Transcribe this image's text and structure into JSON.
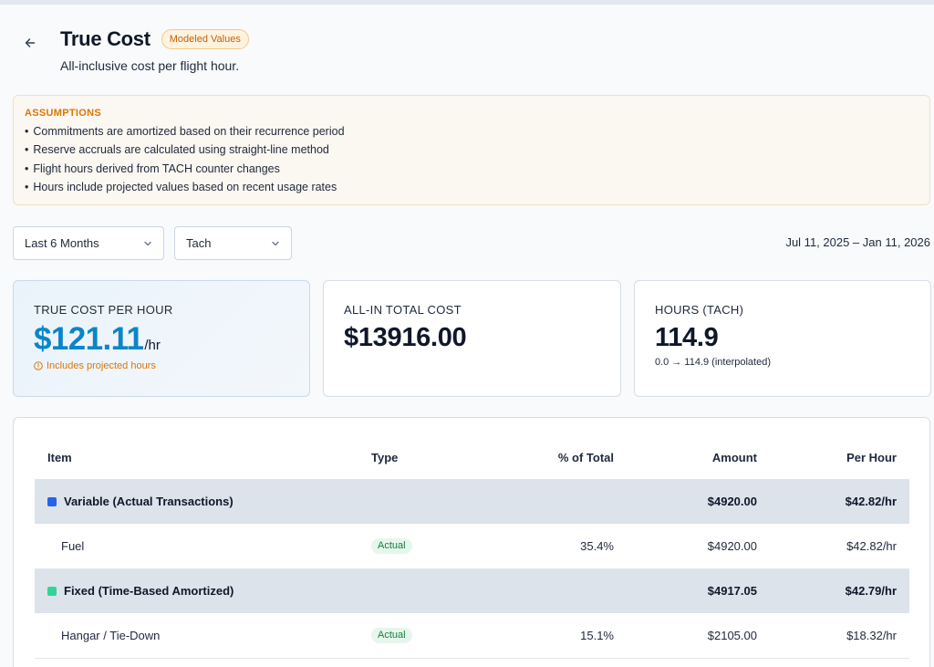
{
  "header": {
    "title": "True Cost",
    "badge": "Modeled Values",
    "subtitle": "All-inclusive cost per flight hour."
  },
  "assumptions": {
    "heading": "ASSUMPTIONS",
    "items": [
      "Commitments are amortized based on their recurrence period",
      "Reserve accruals are calculated using straight-line method",
      "Flight hours derived from TACH counter changes",
      "Hours include projected values based on recent usage rates"
    ]
  },
  "filters": {
    "period": "Last 6 Months",
    "hours_source": "Tach",
    "date_range": "Jul 11, 2025 – Jan 11, 2026"
  },
  "cards": {
    "true_cost": {
      "label": "TRUE COST PER HOUR",
      "value": "$121.11",
      "unit": "/hr",
      "note": "Includes projected hours"
    },
    "total": {
      "label": "ALL-IN TOTAL COST",
      "value": "$13916.00"
    },
    "hours": {
      "label": "HOURS (TACH)",
      "value": "114.9",
      "note": "0.0 → 114.9 (interpolated)"
    }
  },
  "table": {
    "headers": {
      "item": "Item",
      "type": "Type",
      "pct": "% of Total",
      "amount": "Amount",
      "per_hour": "Per Hour"
    },
    "rows": [
      {
        "name": "Variable (Actual Transactions)",
        "type": "",
        "pct": "",
        "amount": "$4920.00",
        "per_hour": "$42.82/hr"
      },
      {
        "name": "Fuel",
        "type": "Actual",
        "pct": "35.4%",
        "amount": "$4920.00",
        "per_hour": "$42.82/hr"
      },
      {
        "name": "Fixed (Time-Based Amortized)",
        "type": "",
        "pct": "",
        "amount": "$4917.05",
        "per_hour": "$42.79/hr"
      },
      {
        "name": "Hangar / Tie-Down",
        "type": "Actual",
        "pct": "15.1%",
        "amount": "$2105.00",
        "per_hour": "$18.32/hr"
      }
    ]
  },
  "colors": {
    "accent": "#0a86c8",
    "warning": "#d97706",
    "variable_group": "#2563eb",
    "fixed_group": "#34d399",
    "actual_pill": "#15803d"
  },
  "icons": {
    "back": "arrow-left-icon",
    "select": "chevron-down-icon",
    "note": "info-icon"
  }
}
